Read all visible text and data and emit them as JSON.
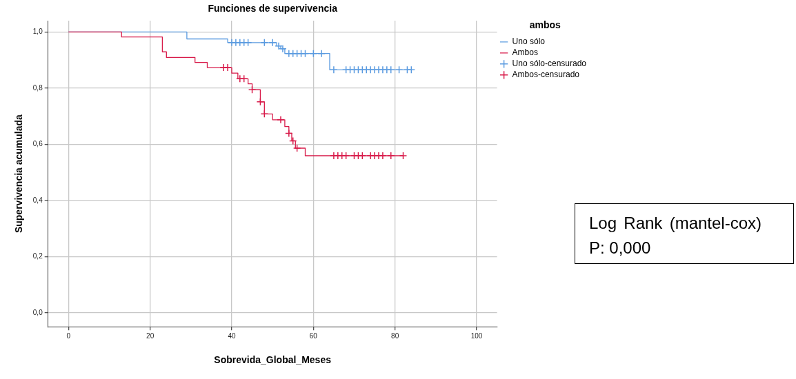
{
  "chart_data": {
    "type": "step",
    "title": "Funciones de supervivencia",
    "xlabel": "Sobrevida_Global_Meses",
    "ylabel": "Supervivencia acumulada",
    "legend_title": "ambos",
    "legend": "top right",
    "grid": true,
    "xlim": [
      -5,
      105
    ],
    "xticks": [
      0,
      20,
      40,
      60,
      80,
      100
    ],
    "ylim": [
      -0.05,
      1.04
    ],
    "yticks": [
      {
        "value": 0,
        "label": "0,0"
      },
      {
        "value": 0.2,
        "label": "0,2"
      },
      {
        "value": 0.4,
        "label": "0,4"
      },
      {
        "value": 0.6,
        "label": "0,6"
      },
      {
        "value": 0.8,
        "label": "0,8"
      },
      {
        "value": 1,
        "label": "1,0"
      }
    ],
    "series": [
      {
        "name": "Uno sólo",
        "color": "#5b9be0",
        "x": [
          0,
          29,
          39,
          51,
          52,
          53,
          64,
          84
        ],
        "values": [
          1,
          0.975,
          0.962,
          0.95,
          0.94,
          0.923,
          0.865,
          0.865
        ]
      },
      {
        "name": "Ambos",
        "color": "#d81b4a",
        "x": [
          0,
          13,
          23,
          24,
          31,
          34,
          40,
          41.5,
          44,
          45,
          47,
          48,
          50,
          53,
          54,
          54.7,
          55.6,
          58,
          82
        ],
        "values": [
          1,
          0.982,
          0.929,
          0.909,
          0.891,
          0.873,
          0.853,
          0.833,
          0.815,
          0.794,
          0.751,
          0.708,
          0.687,
          0.663,
          0.639,
          0.612,
          0.586,
          0.559,
          0.559
        ]
      },
      {
        "name": "Uno sólo-censurado",
        "type": "scatter",
        "marker": "cross",
        "color": "#5b9be0",
        "x": [
          40,
          41,
          42,
          43,
          44,
          48,
          50,
          51.5,
          52.5,
          54,
          55,
          56,
          57,
          58,
          60,
          62,
          65,
          68,
          69,
          70,
          71,
          72,
          73,
          74,
          75,
          76,
          77,
          78,
          79,
          81,
          83,
          84
        ],
        "values": [
          0.962,
          0.962,
          0.962,
          0.962,
          0.962,
          0.962,
          0.962,
          0.95,
          0.94,
          0.923,
          0.923,
          0.923,
          0.923,
          0.923,
          0.923,
          0.923,
          0.865,
          0.865,
          0.865,
          0.865,
          0.865,
          0.865,
          0.865,
          0.865,
          0.865,
          0.865,
          0.865,
          0.865,
          0.865,
          0.865,
          0.865,
          0.865
        ]
      },
      {
        "name": "Ambos-censurado",
        "type": "scatter",
        "marker": "cross",
        "color": "#d81b4a",
        "x": [
          38,
          39,
          42,
          43,
          45,
          47,
          48,
          52,
          54,
          55,
          56,
          65,
          66,
          67,
          68,
          70,
          71,
          72,
          74,
          75,
          76,
          77,
          79,
          82
        ],
        "values": [
          0.873,
          0.873,
          0.833,
          0.833,
          0.794,
          0.751,
          0.708,
          0.687,
          0.639,
          0.612,
          0.586,
          0.559,
          0.559,
          0.559,
          0.559,
          0.559,
          0.559,
          0.559,
          0.559,
          0.559,
          0.559,
          0.559,
          0.559,
          0.559
        ]
      }
    ],
    "annotations": [
      "Log Rank (mantel-cox) P: 0,000"
    ]
  }
}
